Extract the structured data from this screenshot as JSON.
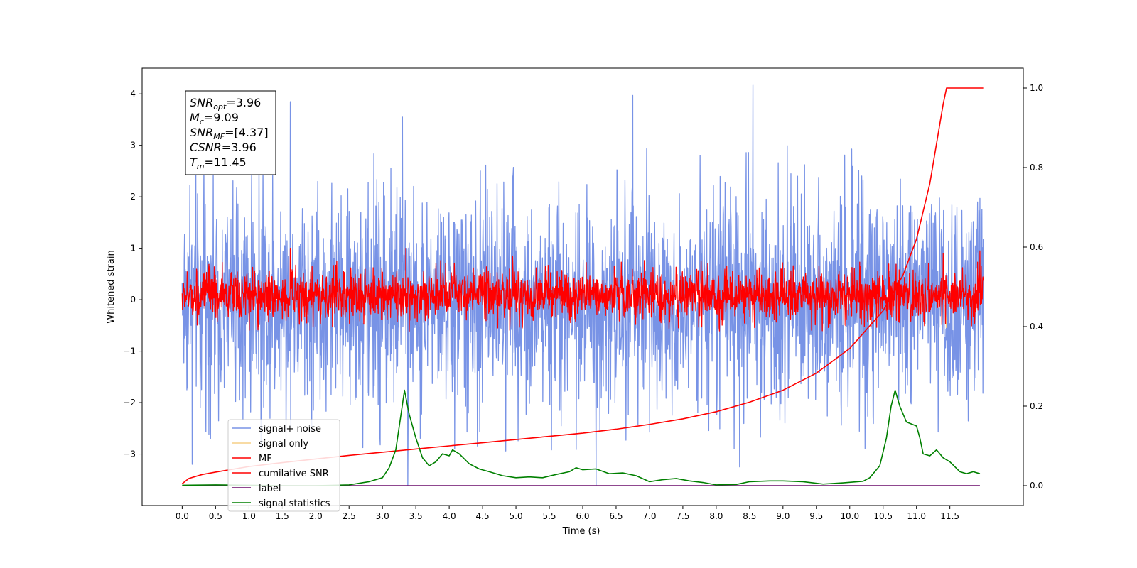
{
  "chart_data": {
    "type": "line",
    "xlabel": "Time (s)",
    "ylabel": "Whitened strain",
    "xlim": [
      -0.6,
      12.6
    ],
    "ylim_left": [
      -4.0,
      4.5
    ],
    "ylim_right": [
      -0.05,
      1.05
    ],
    "x_ticks": [
      0.0,
      0.5,
      1.0,
      1.5,
      2.0,
      2.5,
      3.0,
      3.5,
      4.0,
      4.5,
      5.0,
      5.5,
      6.0,
      6.5,
      7.0,
      7.5,
      8.0,
      8.5,
      9.0,
      9.5,
      10.0,
      10.5,
      11.0,
      11.5
    ],
    "x_tick_labels": [
      "0.0",
      "0.5",
      "1.0",
      "1.5",
      "2.0",
      "2.5",
      "3.0",
      "3.5",
      "4.0",
      "4.5",
      "5.0",
      "5.5",
      "6.0",
      "6.5",
      "7.0",
      "7.5",
      "8.0",
      "8.5",
      "9.0",
      "9.5",
      "10.0",
      "10.5",
      "11.0",
      "11.5"
    ],
    "y_ticks_left": [
      -3,
      -2,
      -1,
      0,
      1,
      2,
      3,
      4
    ],
    "y_tick_labels_left": [
      "−3",
      "−2",
      "−1",
      "0",
      "1",
      "2",
      "3",
      "4"
    ],
    "y_ticks_right": [
      0.0,
      0.2,
      0.4,
      0.6,
      0.8,
      1.0
    ],
    "y_tick_labels_right": [
      "0.0",
      "0.2",
      "0.4",
      "0.6",
      "0.8",
      "1.0"
    ],
    "annotation": {
      "lines": [
        {
          "sym": "SNR",
          "sub": "opt",
          "val": "=3.96"
        },
        {
          "sym": "M",
          "sub": "c",
          "val": "=9.09"
        },
        {
          "sym": "SNR",
          "sub": "MF",
          "val": "=[4.37]"
        },
        {
          "sym": "CSNR",
          "sub": "",
          "val": "=3.96"
        },
        {
          "sym": "T",
          "sub": "m",
          "val": "=11.45"
        }
      ]
    },
    "legend": {
      "placement": "lower-left",
      "entries": [
        {
          "label": "signal+ noise",
          "color": "#7893e6"
        },
        {
          "label": "signal only",
          "color": "#f5cf85"
        },
        {
          "label": "MF",
          "color": "#ff0000"
        },
        {
          "label": "cumilative SNR",
          "color": "#ff0000"
        },
        {
          "label": "label",
          "color": "#6a0a6a"
        },
        {
          "label": "signal statistics",
          "color": "#008000"
        }
      ]
    },
    "series": [
      {
        "name": "signal+ noise",
        "axis": "left",
        "color": "#7893e6",
        "x_range": [
          0.0,
          12.0
        ],
        "noise_band": [
          -2.0,
          2.0
        ],
        "peaks": [
          {
            "x": 1.62,
            "y": 3.85
          },
          {
            "x": 3.3,
            "y": 3.55
          },
          {
            "x": 6.75,
            "y": 3.97
          },
          {
            "x": 8.55,
            "y": 4.17
          },
          {
            "x": 3.38,
            "y": -3.6
          },
          {
            "x": 6.2,
            "y": -3.6
          },
          {
            "x": 8.35,
            "y": -3.25
          },
          {
            "x": 0.15,
            "y": -3.2
          }
        ]
      },
      {
        "name": "signal only",
        "axis": "left",
        "color": "#f5cf85",
        "points": [
          [
            11.43,
            -0.1
          ],
          [
            11.45,
            -0.55
          ]
        ]
      },
      {
        "name": "MF",
        "axis": "left",
        "color": "#ff0000",
        "x_range": [
          0.0,
          12.0
        ],
        "noise_band": [
          -0.38,
          0.55
        ],
        "peaks": [
          {
            "x": 1.62,
            "y": 1.0
          },
          {
            "x": 3.35,
            "y": 1.0
          },
          {
            "x": 4.95,
            "y": 0.85
          },
          {
            "x": 11.4,
            "y": 0.9
          },
          {
            "x": 11.95,
            "y": 0.95
          }
        ]
      },
      {
        "name": "cumilative SNR",
        "axis": "right",
        "color": "#ff0000",
        "points": [
          [
            0.0,
            0.005
          ],
          [
            0.1,
            0.018
          ],
          [
            0.3,
            0.028
          ],
          [
            0.5,
            0.034
          ],
          [
            1.0,
            0.048
          ],
          [
            1.5,
            0.058
          ],
          [
            2.0,
            0.067
          ],
          [
            2.5,
            0.076
          ],
          [
            3.0,
            0.084
          ],
          [
            3.5,
            0.092
          ],
          [
            4.0,
            0.1
          ],
          [
            4.5,
            0.108
          ],
          [
            5.0,
            0.116
          ],
          [
            5.5,
            0.124
          ],
          [
            6.0,
            0.132
          ],
          [
            6.5,
            0.142
          ],
          [
            7.0,
            0.154
          ],
          [
            7.5,
            0.168
          ],
          [
            8.0,
            0.186
          ],
          [
            8.5,
            0.21
          ],
          [
            9.0,
            0.24
          ],
          [
            9.5,
            0.283
          ],
          [
            10.0,
            0.345
          ],
          [
            10.5,
            0.44
          ],
          [
            10.8,
            0.53
          ],
          [
            11.0,
            0.62
          ],
          [
            11.2,
            0.76
          ],
          [
            11.3,
            0.86
          ],
          [
            11.4,
            0.96
          ],
          [
            11.45,
            1.0
          ],
          [
            12.0,
            1.0
          ]
        ]
      },
      {
        "name": "label",
        "axis": "right",
        "color": "#6a0a6a",
        "points": [
          [
            0.0,
            0.0
          ],
          [
            11.95,
            0.0
          ]
        ]
      },
      {
        "name": "signal statistics",
        "axis": "right",
        "color": "#008000",
        "points": [
          [
            0.0,
            0.001
          ],
          [
            0.5,
            0.002
          ],
          [
            1.0,
            0.001
          ],
          [
            1.5,
            0.0
          ],
          [
            2.0,
            0.0
          ],
          [
            2.5,
            0.002
          ],
          [
            2.8,
            0.01
          ],
          [
            3.0,
            0.02
          ],
          [
            3.1,
            0.045
          ],
          [
            3.2,
            0.09
          ],
          [
            3.27,
            0.17
          ],
          [
            3.33,
            0.24
          ],
          [
            3.4,
            0.18
          ],
          [
            3.5,
            0.12
          ],
          [
            3.6,
            0.07
          ],
          [
            3.7,
            0.05
          ],
          [
            3.8,
            0.06
          ],
          [
            3.9,
            0.08
          ],
          [
            4.0,
            0.075
          ],
          [
            4.05,
            0.09
          ],
          [
            4.15,
            0.08
          ],
          [
            4.3,
            0.055
          ],
          [
            4.45,
            0.042
          ],
          [
            4.6,
            0.035
          ],
          [
            4.8,
            0.025
          ],
          [
            5.0,
            0.02
          ],
          [
            5.2,
            0.022
          ],
          [
            5.4,
            0.02
          ],
          [
            5.6,
            0.028
          ],
          [
            5.8,
            0.035
          ],
          [
            5.9,
            0.045
          ],
          [
            6.0,
            0.04
          ],
          [
            6.2,
            0.042
          ],
          [
            6.4,
            0.03
          ],
          [
            6.6,
            0.032
          ],
          [
            6.8,
            0.025
          ],
          [
            7.0,
            0.01
          ],
          [
            7.2,
            0.015
          ],
          [
            7.4,
            0.018
          ],
          [
            7.6,
            0.012
          ],
          [
            7.8,
            0.008
          ],
          [
            8.0,
            0.002
          ],
          [
            8.3,
            0.003
          ],
          [
            8.5,
            0.01
          ],
          [
            8.8,
            0.012
          ],
          [
            9.0,
            0.012
          ],
          [
            9.3,
            0.01
          ],
          [
            9.6,
            0.004
          ],
          [
            9.9,
            0.007
          ],
          [
            10.2,
            0.011
          ],
          [
            10.3,
            0.02
          ],
          [
            10.45,
            0.05
          ],
          [
            10.55,
            0.12
          ],
          [
            10.62,
            0.2
          ],
          [
            10.68,
            0.24
          ],
          [
            10.75,
            0.2
          ],
          [
            10.85,
            0.16
          ],
          [
            11.0,
            0.15
          ],
          [
            11.05,
            0.12
          ],
          [
            11.1,
            0.08
          ],
          [
            11.2,
            0.075
          ],
          [
            11.3,
            0.09
          ],
          [
            11.4,
            0.07
          ],
          [
            11.5,
            0.06
          ],
          [
            11.65,
            0.035
          ],
          [
            11.75,
            0.03
          ],
          [
            11.85,
            0.035
          ],
          [
            11.95,
            0.03
          ]
        ]
      }
    ]
  }
}
